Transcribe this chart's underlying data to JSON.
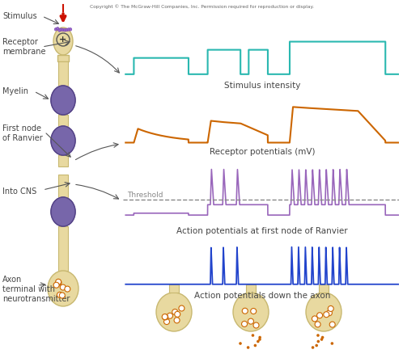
{
  "copyright": "Copyright © The McGraw-Hill Companies, Inc. Permission required for reproduction or display.",
  "stimulus_color": "#2ab8b0",
  "receptor_color": "#cc6600",
  "action_ranvier_color": "#9966bb",
  "action_axon_color": "#2244cc",
  "threshold_color": "#888888",
  "neuron_body_color": "#e8d9a0",
  "neuron_edge_color": "#c8b870",
  "myelin_color": "#7766aa",
  "myelin_edge_color": "#554488",
  "bg_color": "#ffffff",
  "text_color": "#444444",
  "arrow_red_color": "#cc1100",
  "vesicle_color": "#cc6600",
  "dot_color": "#cc6600",
  "labels": {
    "stimulus": "Stimulus",
    "receptor": "Receptor\nmembrane",
    "myelin": "Myelin",
    "first_node": "First node\nof Ranvier",
    "into_cns": "Into CNS",
    "axon_terminal": "Axon\nterminal with\nneurotransmitter",
    "stimulus_intensity": "Stimulus intensity",
    "receptor_potentials": "Receptor potentials (mV)",
    "action_ranvier": "Action potentials at first node of Ranvier",
    "action_axon": "Action potentials down the axon",
    "threshold": "Threshold"
  }
}
